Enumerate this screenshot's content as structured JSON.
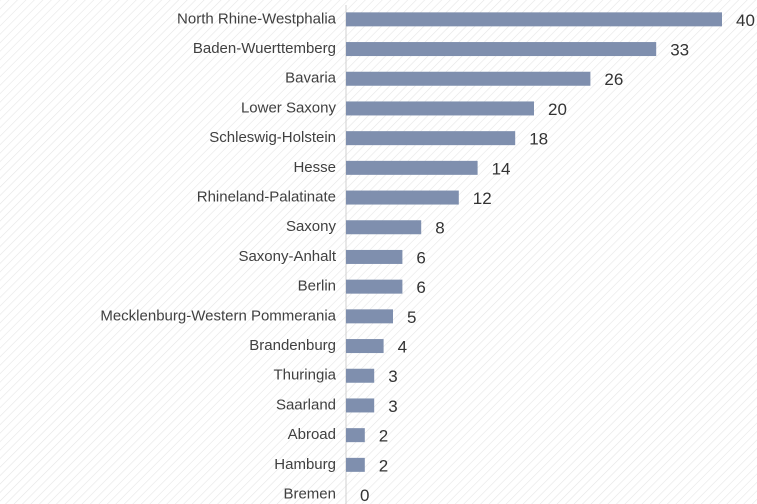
{
  "chart_data": {
    "type": "bar",
    "orientation": "horizontal",
    "categories": [
      "North Rhine-Westphalia",
      "Baden-Wuerttemberg",
      "Bavaria",
      "Lower Saxony",
      "Schleswig-Holstein",
      "Hesse",
      "Rhineland-Palatinate",
      "Saxony",
      "Saxony-Anhalt",
      "Berlin",
      "Mecklenburg-Western Pommerania",
      "Brandenburg",
      "Thuringia",
      "Saarland",
      "Abroad",
      "Hamburg",
      "Bremen"
    ],
    "values": [
      40,
      33,
      26,
      20,
      18,
      14,
      12,
      8,
      6,
      6,
      5,
      4,
      3,
      3,
      2,
      2,
      0
    ],
    "color": "#7f8fae",
    "xlim": [
      0,
      40
    ]
  }
}
